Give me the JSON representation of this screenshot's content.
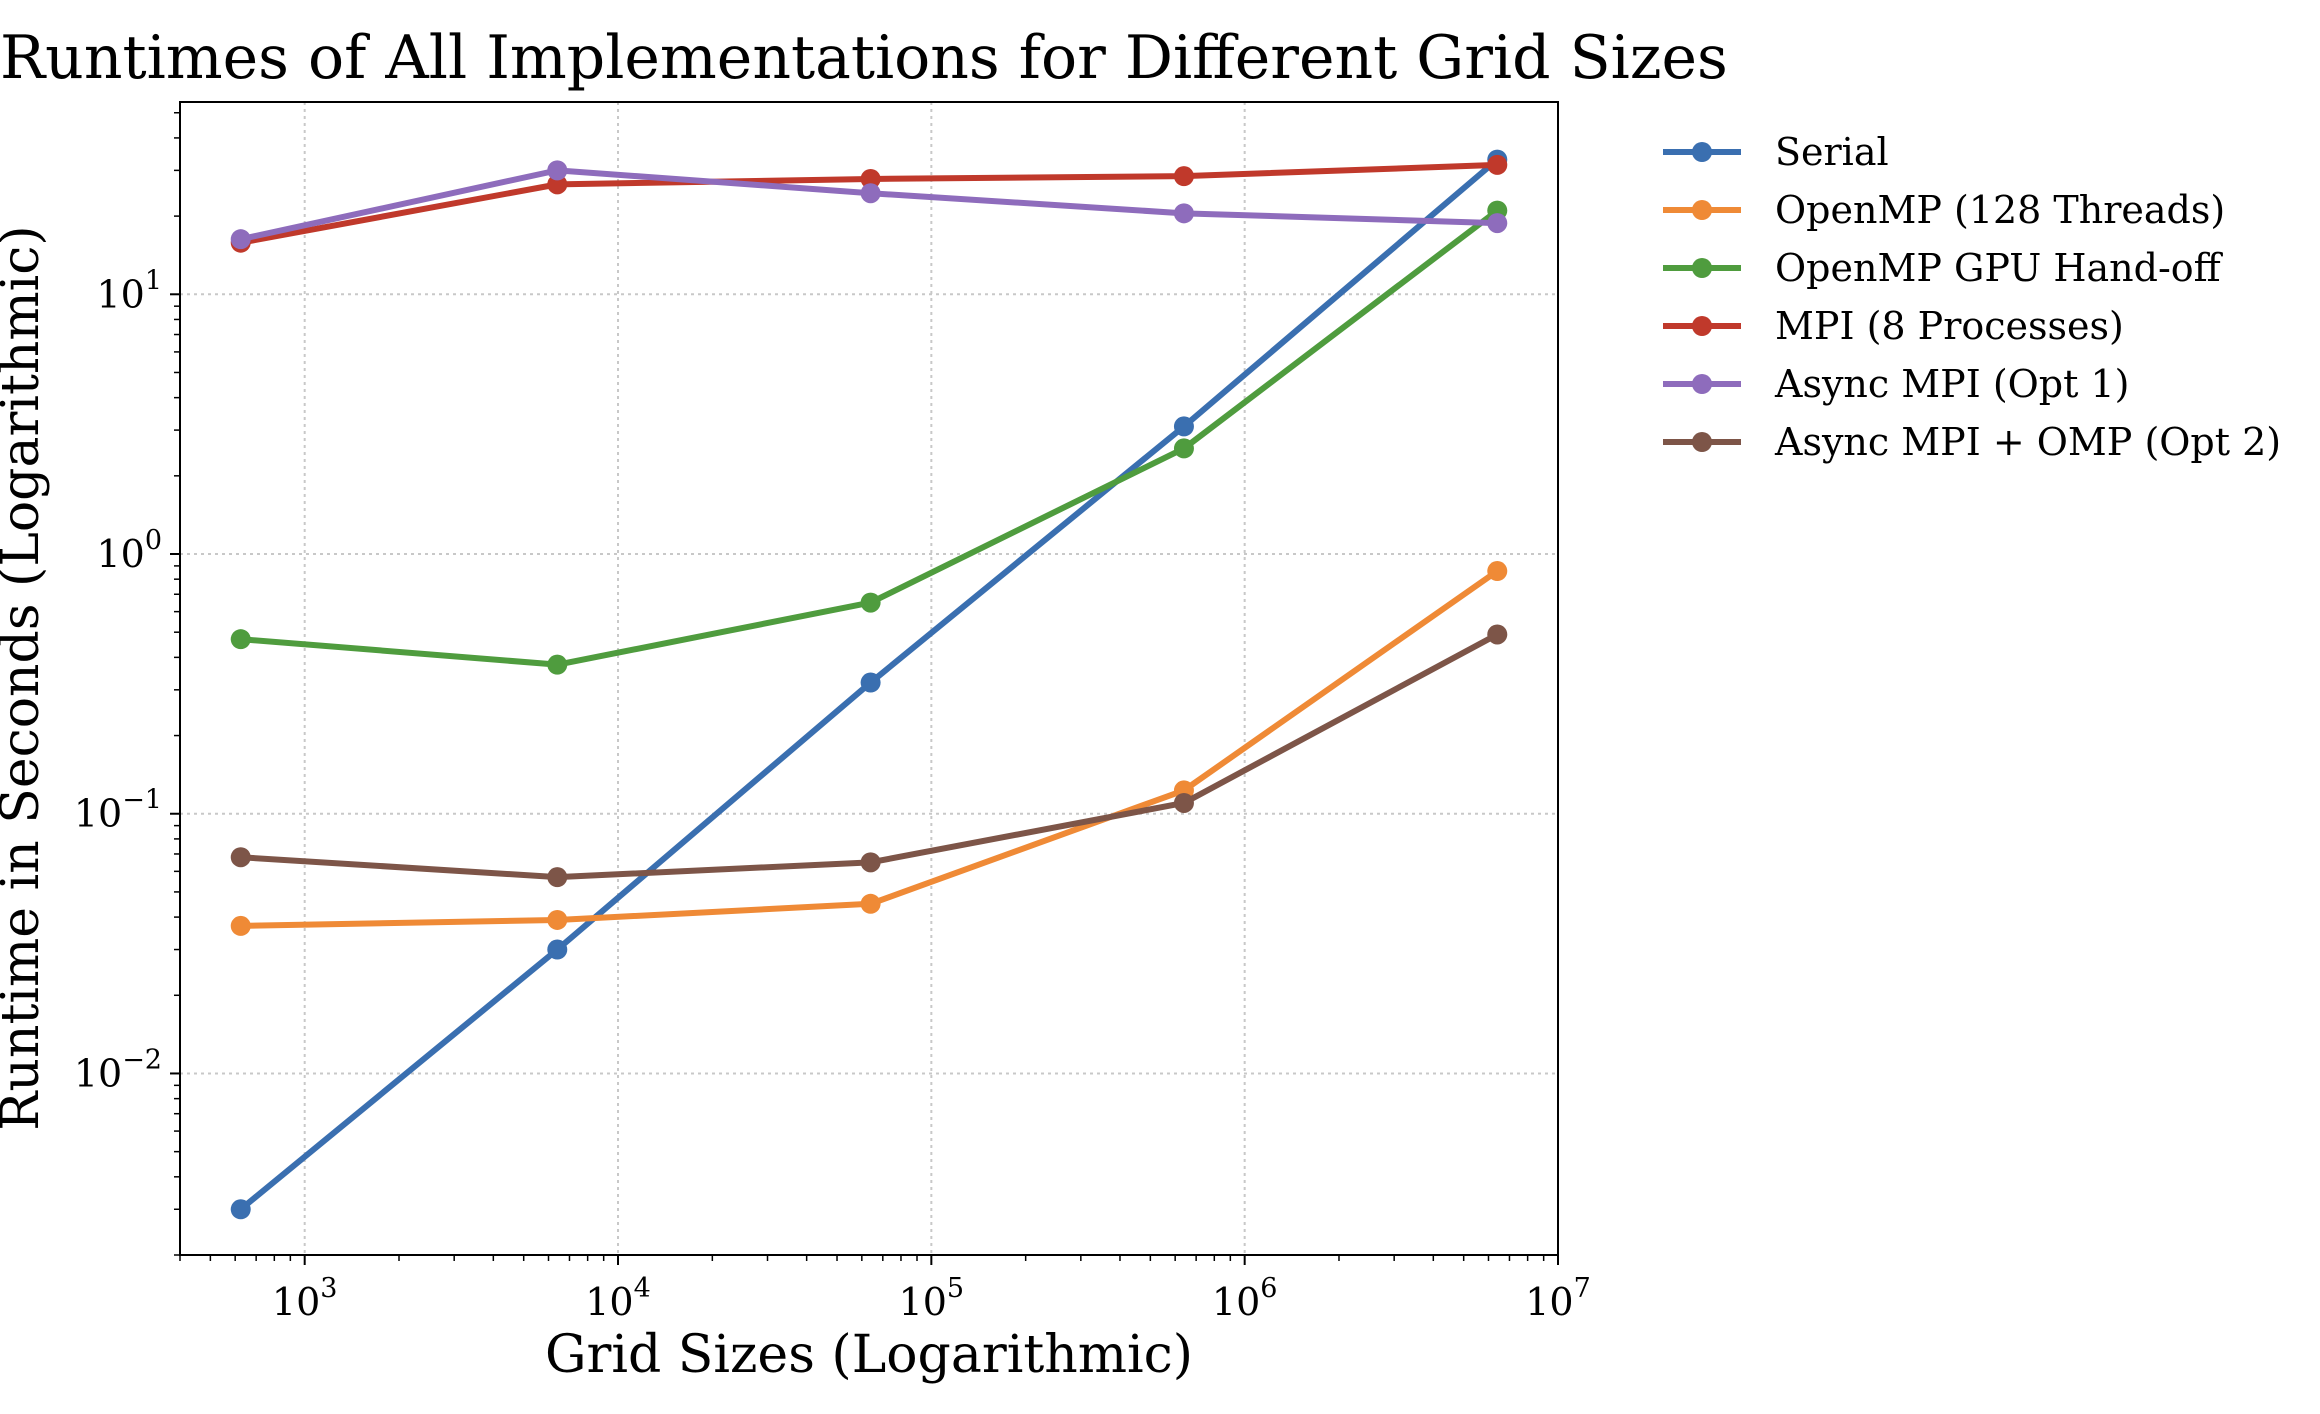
{
  "chart_data": {
    "type": "line",
    "title": "Runtimes of All Implementations for Different Grid Sizes",
    "xlabel": "Grid Sizes (Logarithmic)",
    "ylabel": "Runtime in Seconds (Logarithmic)",
    "xscale": "log",
    "yscale": "log",
    "xlim": [
      400,
      10000000
    ],
    "ylim": [
      0.002,
      55
    ],
    "grid": true,
    "legend_placement": "outside right, top",
    "x": [
      625,
      6400,
      64000,
      640000,
      6400000
    ],
    "x_ticks": [
      {
        "base": "10",
        "exp": "3",
        "value": 1000
      },
      {
        "base": "10",
        "exp": "4",
        "value": 10000
      },
      {
        "base": "10",
        "exp": "5",
        "value": 100000
      },
      {
        "base": "10",
        "exp": "6",
        "value": 1000000
      },
      {
        "base": "10",
        "exp": "7",
        "value": 10000000
      }
    ],
    "y_ticks": [
      {
        "base": "10",
        "exp": "−2",
        "value": 0.01
      },
      {
        "base": "10",
        "exp": "−1",
        "value": 0.1
      },
      {
        "base": "10",
        "exp": "0",
        "value": 1
      },
      {
        "base": "10",
        "exp": "1",
        "value": 10
      }
    ],
    "series": [
      {
        "name": "Serial",
        "color": "#3a6fb0",
        "values": [
          0.003,
          0.03,
          0.32,
          3.1,
          33.0
        ]
      },
      {
        "name": "OpenMP (128 Threads)",
        "color": "#ef8a36",
        "values": [
          0.037,
          0.039,
          0.045,
          0.123,
          0.86
        ]
      },
      {
        "name": "OpenMP GPU Hand-off",
        "color": "#4f9c3e",
        "values": [
          0.47,
          0.375,
          0.65,
          2.55,
          21.0
        ]
      },
      {
        "name": "MPI (8 Processes)",
        "color": "#c0392b",
        "values": [
          15.8,
          26.5,
          27.8,
          28.5,
          31.5
        ]
      },
      {
        "name": "Async MPI (Opt 1)",
        "color": "#8e6cbc",
        "values": [
          16.3,
          30.0,
          24.5,
          20.5,
          18.8
        ]
      },
      {
        "name": "Async MPI + OMP (Opt 2)",
        "color": "#7d5548",
        "values": [
          0.068,
          0.057,
          0.065,
          0.11,
          0.49
        ]
      }
    ]
  }
}
